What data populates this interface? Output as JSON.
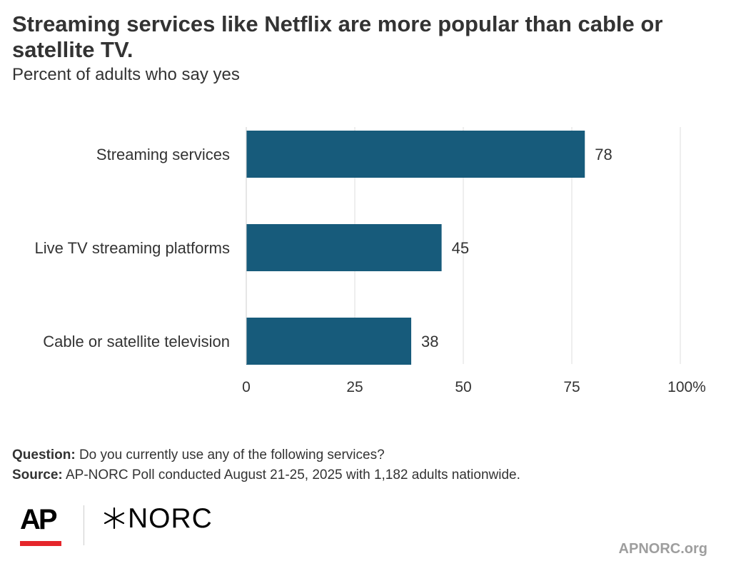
{
  "title": "Streaming services like Netflix are more popular than cable or satellite TV.",
  "subtitle": "Percent of adults who say yes",
  "chart_data": {
    "type": "bar",
    "orientation": "horizontal",
    "categories": [
      "Streaming services",
      "Live TV streaming platforms",
      "Cable or satellite television"
    ],
    "values": [
      78,
      45,
      38
    ],
    "xlim": [
      0,
      100
    ],
    "ticks": [
      0,
      25,
      50,
      75,
      100
    ],
    "tick_labels": [
      "0",
      "25",
      "50",
      "75",
      "100"
    ],
    "unit": "%",
    "grid": true,
    "bar_color": "#175b7b"
  },
  "footer": {
    "question_label": "Question:",
    "question_text": "Do you currently use any of the following services?",
    "source_label": "Source:",
    "source_text": "AP-NORC Poll conducted August 21-25, 2025 with 1,182 adults nationwide."
  },
  "logos": {
    "ap": "AP",
    "norc": "NORC",
    "ap_accent_color": "#e5262b"
  },
  "site": "APNORC.org"
}
